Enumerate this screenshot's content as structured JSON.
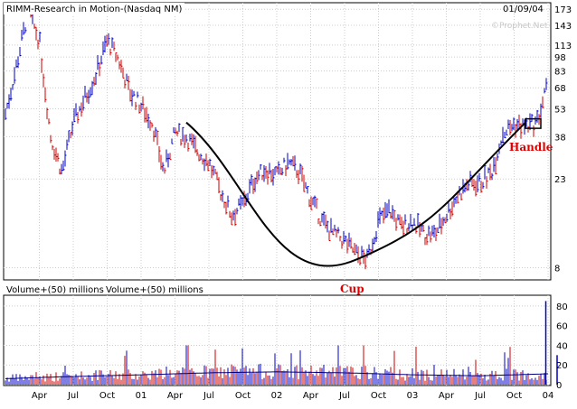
{
  "chart_data": {
    "type": "ohlc_with_volume",
    "title": "RIMM-Research in Motion-(Nasdaq NM)",
    "date": "01/09/04",
    "watermark": "©Prophet.Net",
    "price_axis": {
      "scale": "log",
      "ticks": [
        8,
        23,
        38,
        53,
        68,
        83,
        98,
        113,
        143,
        173
      ],
      "ylim": [
        7,
        185
      ]
    },
    "volume_axis": {
      "label": "Volume+(50) millions",
      "ticks": [
        0,
        20,
        40,
        60,
        80
      ],
      "ylim": [
        0,
        90
      ]
    },
    "x_ticks": [
      "Apr",
      "Jul",
      "Oct",
      "01",
      "Apr",
      "Jul",
      "Oct",
      "02",
      "Apr",
      "Jul",
      "Oct",
      "03",
      "Apr",
      "Jul",
      "Oct",
      "04"
    ],
    "x_range": [
      "2000-01",
      "2004-01"
    ],
    "price_path": [
      [
        "2000-01",
        50
      ],
      [
        "2000-02",
        90
      ],
      [
        "2000-03",
        170
      ],
      [
        "2000-04",
        120
      ],
      [
        "2000-05",
        38
      ],
      [
        "2000-06",
        25
      ],
      [
        "2000-07",
        45
      ],
      [
        "2000-08",
        60
      ],
      [
        "2000-09",
        80
      ],
      [
        "2000-10",
        120
      ],
      [
        "2000-11",
        95
      ],
      [
        "2000-12",
        65
      ],
      [
        "2001-01",
        55
      ],
      [
        "2001-02",
        45
      ],
      [
        "2001-03",
        25
      ],
      [
        "2001-04",
        40
      ],
      [
        "2001-05",
        38
      ],
      [
        "2001-06",
        32
      ],
      [
        "2001-07",
        28
      ],
      [
        "2001-08",
        20
      ],
      [
        "2001-09",
        15
      ],
      [
        "2001-10",
        17
      ],
      [
        "2001-11",
        23
      ],
      [
        "2001-12",
        26
      ],
      [
        "2002-01",
        24
      ],
      [
        "2002-02",
        28
      ],
      [
        "2002-03",
        25
      ],
      [
        "2002-04",
        18
      ],
      [
        "2002-05",
        14
      ],
      [
        "2002-06",
        12
      ],
      [
        "2002-07",
        11
      ],
      [
        "2002-08",
        9.5
      ],
      [
        "2002-09",
        8.8
      ],
      [
        "2002-10",
        14
      ],
      [
        "2002-11",
        16
      ],
      [
        "2002-12",
        13
      ],
      [
        "2003-01",
        14
      ],
      [
        "2003-02",
        12
      ],
      [
        "2003-03",
        12
      ],
      [
        "2003-04",
        15
      ],
      [
        "2003-05",
        19
      ],
      [
        "2003-06",
        22
      ],
      [
        "2003-07",
        22
      ],
      [
        "2003-08",
        25
      ],
      [
        "2003-09",
        40
      ],
      [
        "2003-10",
        44
      ],
      [
        "2003-11",
        43
      ],
      [
        "2003-12",
        45
      ],
      [
        "2004-01",
        72
      ]
    ],
    "volume_avg": [
      [
        "2000-01",
        6
      ],
      [
        "2000-06",
        8
      ],
      [
        "2001-01",
        10
      ],
      [
        "2001-07",
        12
      ],
      [
        "2002-01",
        13
      ],
      [
        "2002-07",
        12
      ],
      [
        "2003-01",
        10
      ],
      [
        "2003-07",
        9
      ],
      [
        "2004-01",
        11
      ]
    ],
    "volume_spike": [
      [
        "2003-12",
        85
      ],
      [
        "2004-01",
        30
      ]
    ],
    "annotations": [
      {
        "label": "Cup",
        "color": "#e00000"
      },
      {
        "label": "Handle",
        "color": "#e00000"
      }
    ],
    "cup_curve": [
      [
        "2001-05",
        45
      ],
      [
        "2002-08",
        8.8
      ],
      [
        "2003-11",
        45
      ]
    ],
    "handle_box": {
      "x": [
        "2003-11",
        "2004-01"
      ],
      "y": [
        42,
        47
      ]
    },
    "colors": {
      "up": "#0000c8",
      "down": "#cc0000",
      "grid": "#cccccc",
      "frame": "#000000",
      "avg": "#000080"
    }
  }
}
